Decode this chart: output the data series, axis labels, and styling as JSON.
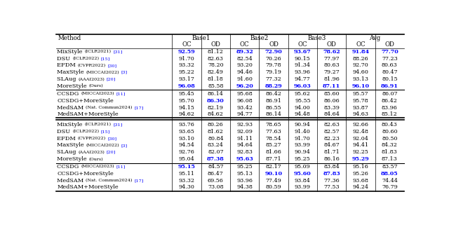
{
  "col_widths": [
    2.2,
    0.55,
    0.55,
    0.55,
    0.55,
    0.55,
    0.55,
    0.55,
    0.55
  ],
  "section1": [
    [
      "MixStyle (ICLR2021) [31]",
      "92.59",
      "81.12",
      "89.32",
      "72.90",
      "93.67",
      "78.62",
      "91.84",
      "77.70"
    ],
    [
      "DSU (ICLR2022) [15]",
      "91.70",
      "82.63",
      "82.54",
      "70.26",
      "90.15",
      "77.97",
      "88.26",
      "77.23"
    ],
    [
      "EFDM (CVPR2022) [30]",
      "93.32",
      "78.20",
      "93.20",
      "79.78",
      "91.34",
      "80.63",
      "92.70",
      "80.63"
    ],
    [
      "MaxStyle (MICCAI2022) [3]",
      "95.22",
      "82.49",
      "94.46",
      "79.19",
      "93.96",
      "79.27",
      "94.60",
      "80.47"
    ],
    [
      "SLAug (AAAI2023) [20]",
      "93.17",
      "81.18",
      "91.60",
      "77.32",
      "94.77",
      "81.96",
      "93.13",
      "80.15"
    ],
    [
      "MoreStyle (Ours)",
      "96.08",
      "85.58",
      "96.20",
      "88.29",
      "96.03",
      "87.11",
      "96.10",
      "86.91"
    ]
  ],
  "section1_blue": [
    [
      true,
      false,
      true,
      true,
      true,
      true,
      true,
      true
    ],
    [
      false,
      false,
      false,
      false,
      false,
      false,
      false,
      false
    ],
    [
      false,
      false,
      false,
      false,
      false,
      false,
      false,
      false
    ],
    [
      false,
      false,
      false,
      false,
      false,
      false,
      false,
      false
    ],
    [
      false,
      false,
      false,
      false,
      false,
      false,
      false,
      false
    ],
    [
      true,
      false,
      true,
      true,
      true,
      true,
      true,
      true
    ]
  ],
  "section2": [
    [
      "CCSDG (MICCAI2023) [11]",
      "95.45",
      "86.14",
      "95.68",
      "86.42",
      "95.62",
      "85.60",
      "95.57",
      "86.07"
    ],
    [
      "CCSDG+MoreStyle",
      "95.70",
      "86.30",
      "96.08",
      "86.91",
      "95.55",
      "86.06",
      "95.78",
      "86.42"
    ],
    [
      "MedSAM (Nat. Commun2024) [17]",
      "94.15",
      "82.19",
      "93.42",
      "86.55",
      "94.00",
      "83.39",
      "93.87",
      "83.96"
    ],
    [
      "MedSAM+MoreStyle",
      "94.62",
      "84.62",
      "94.77",
      "86.14",
      "94.48",
      "84.64",
      "94.63",
      "85.12"
    ]
  ],
  "section2_blue": [
    [
      false,
      false,
      false,
      false,
      false,
      false,
      false,
      false
    ],
    [
      false,
      true,
      false,
      false,
      false,
      false,
      false,
      false
    ],
    [
      false,
      false,
      false,
      false,
      false,
      false,
      false,
      false
    ],
    [
      false,
      false,
      false,
      false,
      false,
      false,
      false,
      false
    ]
  ],
  "section3": [
    [
      "MixStyle (ICLR2021) [31]",
      "93.76",
      "80.26",
      "92.93",
      "78.65",
      "90.94",
      "82.63",
      "92.66",
      "80.43"
    ],
    [
      "DSU (ICLR2022) [15]",
      "93.65",
      "81.62",
      "92.09",
      "77.63",
      "91.40",
      "82.57",
      "92.48",
      "80.60"
    ],
    [
      "EFDM (CVPR2022) [30]",
      "93.10",
      "80.84",
      "91.11",
      "78.54",
      "91.70",
      "82.23",
      "92.04",
      "80.50"
    ],
    [
      "MaxStyle (MICCAI2022) [3]",
      "94.54",
      "83.24",
      "94.64",
      "85.27",
      "93.99",
      "84.67",
      "94.41",
      "84.32"
    ],
    [
      "SLAug (AAAI2023) [20]",
      "92.76",
      "82.07",
      "92.83",
      "81.66",
      "90.94",
      "81.71",
      "92.25",
      "81.83"
    ],
    [
      "MoreStyle (Ours)",
      "95.04",
      "87.38",
      "95.63",
      "87.71",
      "95.25",
      "86.16",
      "95.29",
      "87.13"
    ]
  ],
  "section3_blue": [
    [
      false,
      false,
      false,
      false,
      false,
      false,
      false,
      false
    ],
    [
      false,
      false,
      false,
      false,
      false,
      false,
      false,
      false
    ],
    [
      false,
      false,
      false,
      false,
      false,
      false,
      false,
      false
    ],
    [
      false,
      false,
      false,
      false,
      false,
      false,
      false,
      false
    ],
    [
      false,
      false,
      false,
      false,
      false,
      false,
      false,
      false
    ],
    [
      false,
      true,
      true,
      false,
      false,
      false,
      true,
      false
    ]
  ],
  "section4": [
    [
      "CCSDG (MICCAI2023) [11]",
      "95.15",
      "84.57",
      "95.25",
      "82.17",
      "95.09",
      "83.84",
      "95.16",
      "83.57"
    ],
    [
      "CCSDG+MoreStyle",
      "95.11",
      "86.47",
      "95.13",
      "90.10",
      "95.60",
      "87.83",
      "95.26",
      "88.05"
    ],
    [
      "MedSAM (Nat. Commun2024) [17]",
      "93.32",
      "69.56",
      "93.96",
      "77.49",
      "93.84",
      "77.36",
      "93.68",
      "74.44"
    ],
    [
      "MedSAM+MoreStyle",
      "94.30",
      "73.08",
      "94.38",
      "80.59",
      "93.99",
      "77.53",
      "94.24",
      "76.79"
    ]
  ],
  "section4_blue": [
    [
      true,
      false,
      false,
      false,
      false,
      false,
      false,
      false
    ],
    [
      false,
      false,
      false,
      true,
      true,
      true,
      false,
      true
    ],
    [
      false,
      false,
      false,
      false,
      false,
      false,
      false,
      false
    ],
    [
      false,
      false,
      false,
      false,
      false,
      false,
      false,
      false
    ]
  ],
  "blue_color": "#0000FF",
  "black_color": "#000000",
  "bg_color": "#FFFFFF",
  "fs_main": 5.8,
  "fs_header": 6.2,
  "fs_method": 5.9,
  "fs_small": 4.6
}
